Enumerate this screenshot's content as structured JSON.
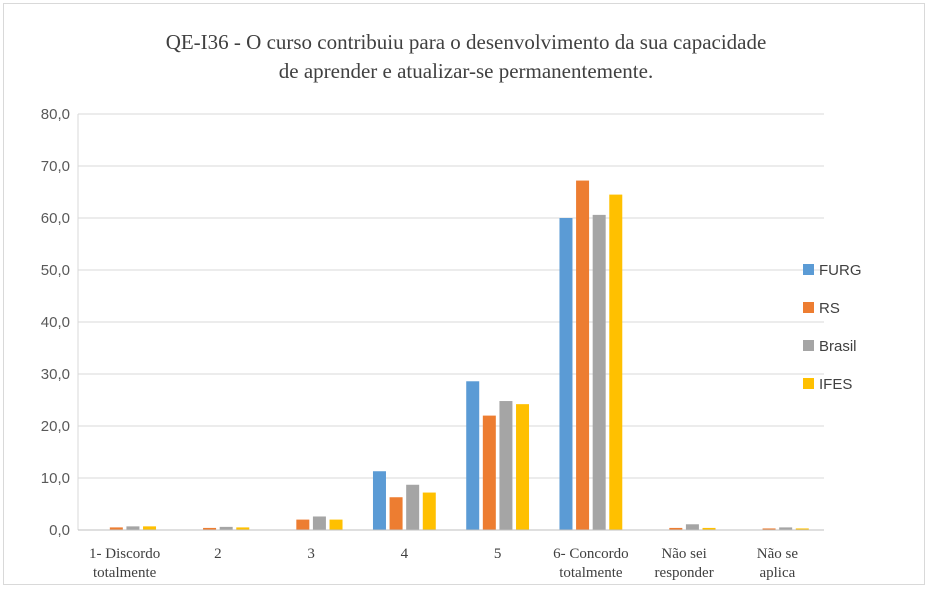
{
  "chart_data": {
    "type": "bar",
    "title_lines": [
      "QE-I36 - O curso contribuiu para o desenvolvimento da sua capacidade",
      "de aprender e atualizar-se permanentemente."
    ],
    "categories": [
      [
        "1- Discordo",
        "totalmente"
      ],
      [
        "2"
      ],
      [
        "3"
      ],
      [
        "4"
      ],
      [
        "5"
      ],
      [
        "6- Concordo",
        "totalmente"
      ],
      [
        "Não sei",
        "responder"
      ],
      [
        "Não se",
        "aplica"
      ]
    ],
    "series": [
      {
        "name": "FURG",
        "color": "#5b9bd5",
        "values": [
          0.0,
          0.0,
          0.0,
          11.3,
          28.6,
          60.0,
          0.0,
          0.0
        ]
      },
      {
        "name": "RS",
        "color": "#ed7d31",
        "values": [
          0.5,
          0.4,
          2.0,
          6.3,
          22.0,
          67.2,
          0.4,
          0.3
        ]
      },
      {
        "name": "Brasil",
        "color": "#a5a5a5",
        "values": [
          0.7,
          0.6,
          2.6,
          8.7,
          24.8,
          60.6,
          1.1,
          0.5
        ]
      },
      {
        "name": "IFES",
        "color": "#ffc000",
        "values": [
          0.7,
          0.5,
          2.0,
          7.2,
          24.2,
          64.5,
          0.4,
          0.3
        ]
      }
    ],
    "yticks": [
      "0,0",
      "10,0",
      "20,0",
      "30,0",
      "40,0",
      "50,0",
      "60,0",
      "70,0",
      "80,0"
    ],
    "ylim": [
      0,
      80
    ],
    "grid": true,
    "legend_position": "right"
  }
}
